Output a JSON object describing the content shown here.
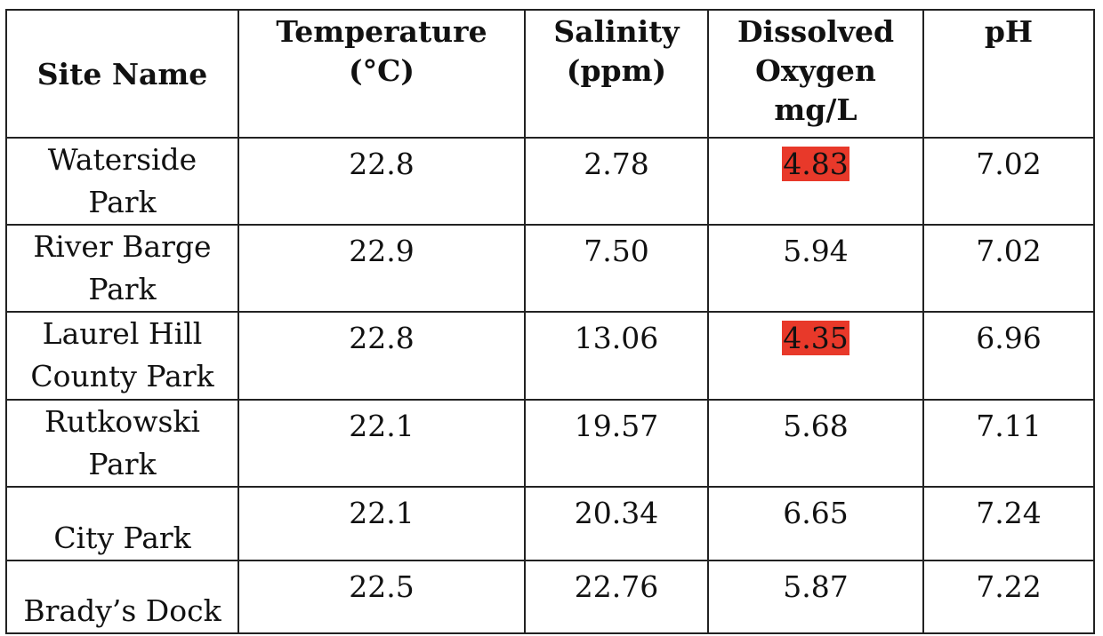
{
  "table": {
    "headers": {
      "site_name": "Site Name",
      "temperature": [
        "Temperature",
        "(°C)"
      ],
      "salinity": [
        "Salinity",
        "(ppm)"
      ],
      "dissolved_oxygen": [
        "Dissolved",
        "Oxygen",
        "mg/L"
      ],
      "ph": "pH"
    },
    "rows": [
      {
        "site": [
          "Waterside",
          "Park"
        ],
        "temperature": "22.8",
        "salinity": "2.78",
        "dissolved_oxygen": "4.83",
        "do_highlight": true,
        "ph": "7.02"
      },
      {
        "site": [
          "River Barge",
          "Park"
        ],
        "temperature": "22.9",
        "salinity": "7.50",
        "dissolved_oxygen": "5.94",
        "do_highlight": false,
        "ph": "7.02"
      },
      {
        "site": [
          "Laurel Hill",
          "County Park"
        ],
        "temperature": "22.8",
        "salinity": "13.06",
        "dissolved_oxygen": "4.35",
        "do_highlight": true,
        "ph": "6.96"
      },
      {
        "site": [
          "Rutkowski",
          "Park"
        ],
        "temperature": "22.1",
        "salinity": "19.57",
        "dissolved_oxygen": "5.68",
        "do_highlight": false,
        "ph": "7.11"
      },
      {
        "site": [
          "City Park"
        ],
        "temperature": "22.1",
        "salinity": "20.34",
        "dissolved_oxygen": "6.65",
        "do_highlight": false,
        "ph": "7.24"
      },
      {
        "site": [
          "Brady’s Dock"
        ],
        "temperature": "22.5",
        "salinity": "22.76",
        "dissolved_oxygen": "5.87",
        "do_highlight": false,
        "ph": "7.22"
      }
    ],
    "colors": {
      "highlight": "#e8392a",
      "border": "#222222",
      "text": "#111111"
    }
  }
}
